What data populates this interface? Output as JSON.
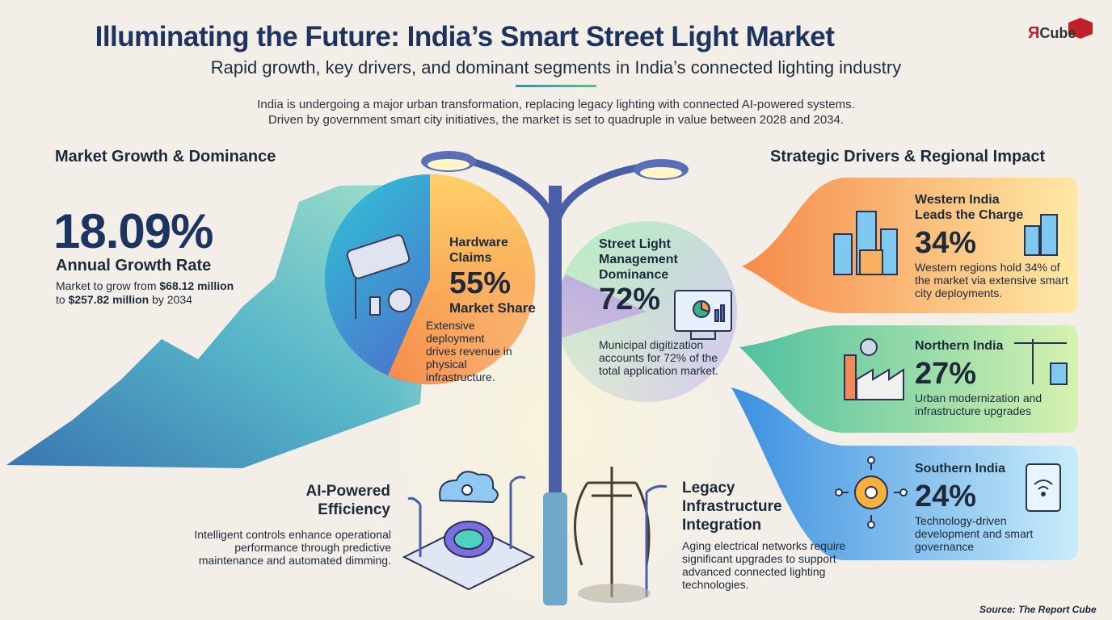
{
  "header": {
    "title": "Illuminating the Future: India’s Smart Street Light Market",
    "subtitle": "Rapid growth, key drivers, and dominant segments in India’s connected lighting industry",
    "intro_line1": "India is undergoing a major urban transformation, replacing legacy lighting with connected AI-powered systems.",
    "intro_line2": "Driven by government smart city initiatives, the market is set to quadruple in value between 2028 and 2034.",
    "logo_r": "Я",
    "logo_text": "Cube"
  },
  "left_section": {
    "heading": "Market Growth & Dominance",
    "growth_rate": "18.09%",
    "growth_label": "Annual Growth Rate",
    "growth_desc_prefix": "Market to grow from ",
    "growth_from": "$68.12 million",
    "growth_to": "$257.82 million",
    "growth_desc_mid": "to ",
    "growth_desc_suffix": " by 2034"
  },
  "hardware": {
    "title_line1": "Hardware",
    "title_line2": "Claims",
    "pct": "55%",
    "label": "Market Share",
    "desc": "Extensive deployment drives revenue in physical infrastructure."
  },
  "street_light_mgmt": {
    "title_line1": "Street Light",
    "title_line2": "Management",
    "title_line3": "Dominance",
    "pct": "72%",
    "desc": "Municipal digitization accounts for 72% of the total application market."
  },
  "right_section": {
    "heading": "Strategic Drivers & Regional Impact",
    "regions": [
      {
        "title_line1": "Western India",
        "title_line2": "Leads the Charge",
        "pct": "34%",
        "desc": "Western regions hold 34% of the market via extensive smart city deployments.",
        "color": "#f7a14a"
      },
      {
        "title_line1": "Northern India",
        "title_line2": "",
        "pct": "27%",
        "desc": "Urban modernization and infrastructure upgrades",
        "color": "#8fcf6a"
      },
      {
        "title_line1": "Southern India",
        "title_line2": "",
        "pct": "24%",
        "desc": "Technology-driven development and smart governance",
        "color": "#5aaee6"
      }
    ]
  },
  "ai": {
    "title_line1": "AI-Powered",
    "title_line2": "Efficiency",
    "desc": "Intelligent controls enhance operational performance through predictive maintenance and automated dimming."
  },
  "legacy": {
    "title_line1": "Legacy",
    "title_line2": "Infrastructure",
    "title_line3": "Integration",
    "desc": "Aging electrical networks require significant upgrades to support advanced connected lighting technologies."
  },
  "footer": {
    "source": "Source: The Report Cube"
  },
  "icons": [
    "street-lamp-icon",
    "city-buildings-icon",
    "factory-icon",
    "crane-icon",
    "gear-network-icon",
    "tablet-wifi-icon",
    "monitor-chart-icon",
    "cloud-gear-icon",
    "brain-chip-icon",
    "utility-pole-icon",
    "led-fixture-icon"
  ]
}
